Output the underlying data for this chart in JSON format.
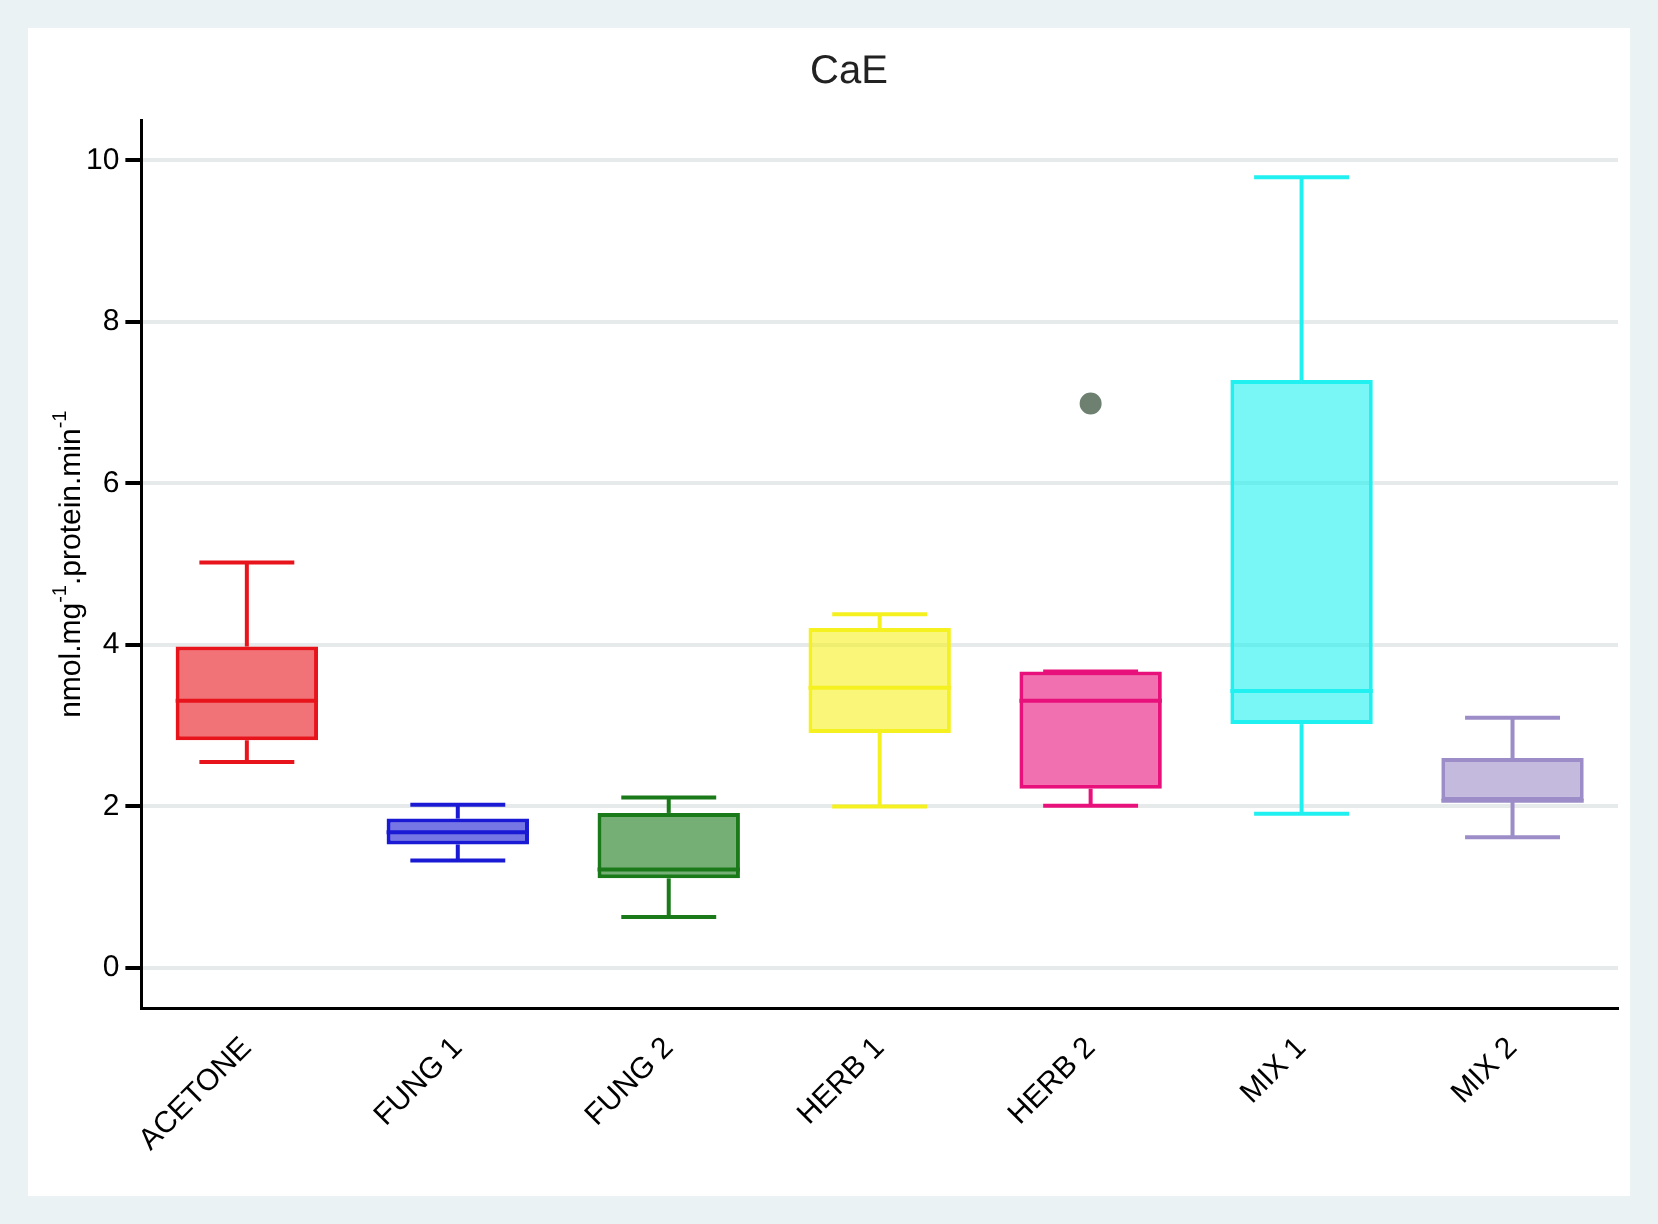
{
  "chart_data": {
    "type": "box",
    "title": "CaE",
    "ylabel": "nmol.mg$^{-1}$.protein.min$^{-1}$",
    "categories": [
      "ACETONE",
      "FUNG 1",
      "FUNG 2",
      "HERB 1",
      "HERB 2",
      "MIX 1",
      "MIX 2"
    ],
    "boxes": [
      {
        "low": 2.55,
        "q1": 2.82,
        "median": 3.31,
        "q3": 3.98,
        "high": 5.02
      },
      {
        "low": 1.33,
        "q1": 1.53,
        "median": 1.68,
        "q3": 1.85,
        "high": 2.02
      },
      {
        "low": 0.63,
        "q1": 1.11,
        "median": 1.22,
        "q3": 1.92,
        "high": 2.11
      },
      {
        "low": 2.0,
        "q1": 2.91,
        "median": 3.47,
        "q3": 4.21,
        "high": 4.38
      },
      {
        "low": 2.01,
        "q1": 2.22,
        "median": 3.31,
        "q3": 3.67,
        "high": 3.67,
        "outliers": [
          6.99
        ]
      },
      {
        "low": 1.91,
        "q1": 3.02,
        "median": 3.43,
        "q3": 7.28,
        "high": 9.79
      },
      {
        "low": 1.62,
        "q1": 2.07,
        "median": 2.07,
        "q3": 2.6,
        "high": 3.1
      }
    ],
    "colors": [
      "#e8141c",
      "#1a1ad4",
      "#1a7a1a",
      "#f5f020",
      "#e8107a",
      "#20f0f0",
      "#9c8cc8"
    ],
    "ylim": [
      -0.5,
      10.5
    ],
    "yticks": [
      0,
      2,
      4,
      6,
      8,
      10
    ],
    "grid": "y",
    "legend": false
  }
}
